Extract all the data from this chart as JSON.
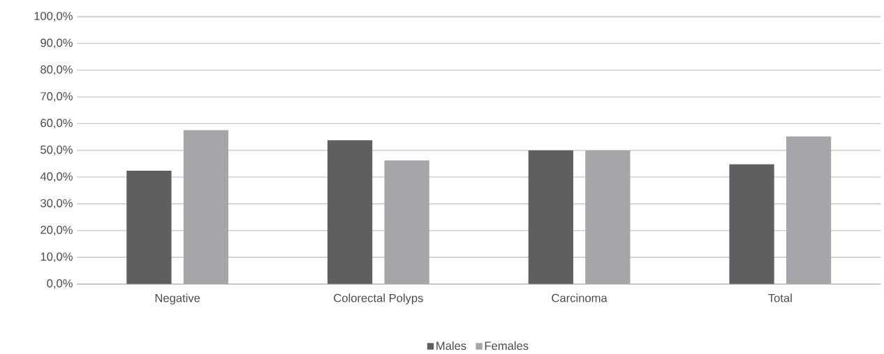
{
  "chart_data": {
    "type": "bar",
    "categories": [
      "Negative",
      "Colorectal Polyps",
      "Carcinoma",
      "Total"
    ],
    "series": [
      {
        "name": "Males",
        "color": "#5f5f61",
        "values": [
          42.4,
          53.8,
          50.0,
          44.8
        ]
      },
      {
        "name": "Females",
        "color": "#a5a6a9",
        "values": [
          57.6,
          46.2,
          50.0,
          55.2
        ]
      }
    ],
    "ylim": [
      0,
      100
    ],
    "yticks": [
      {
        "value": 0,
        "label": "0,0%"
      },
      {
        "value": 10,
        "label": "10,0%"
      },
      {
        "value": 20,
        "label": "20,0%"
      },
      {
        "value": 30,
        "label": "30,0%"
      },
      {
        "value": 40,
        "label": "40,0%"
      },
      {
        "value": 50,
        "label": "50,0%"
      },
      {
        "value": 60,
        "label": "60,0%"
      },
      {
        "value": 70,
        "label": "70,0%"
      },
      {
        "value": 80,
        "label": "80,0%"
      },
      {
        "value": 90,
        "label": "90,0%"
      },
      {
        "value": 100,
        "label": "100,0%"
      }
    ],
    "grid": "y",
    "legend": "bottom"
  }
}
